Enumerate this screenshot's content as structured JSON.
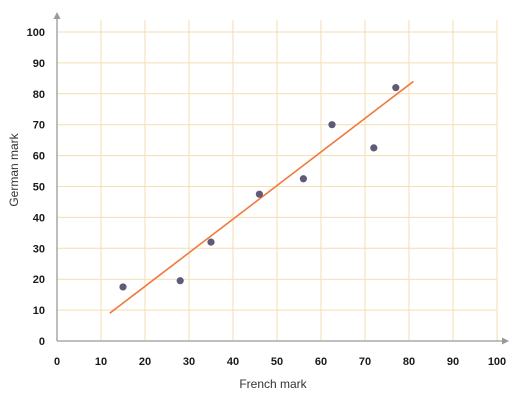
{
  "chart_data": {
    "type": "scatter",
    "title": "",
    "xlabel": "French mark",
    "ylabel": "German mark",
    "xlim": [
      0,
      100
    ],
    "ylim": [
      0,
      100
    ],
    "x_ticks": [
      "0",
      "10",
      "20",
      "30",
      "40",
      "50",
      "60",
      "70",
      "80",
      "90",
      "100"
    ],
    "y_ticks": [
      "0",
      "10",
      "20",
      "30",
      "40",
      "50",
      "60",
      "70",
      "80",
      "90",
      "100"
    ],
    "grid": true,
    "series": [
      {
        "points": [
          {
            "x": 15,
            "y": 17.5
          },
          {
            "x": 28,
            "y": 19.5
          },
          {
            "x": 35,
            "y": 32
          },
          {
            "x": 46,
            "y": 47.5
          },
          {
            "x": 56,
            "y": 52.5
          },
          {
            "x": 62.5,
            "y": 70
          },
          {
            "x": 72,
            "y": 62.5
          },
          {
            "x": 77,
            "y": 82
          }
        ]
      }
    ],
    "trendline": {
      "x1": 12,
      "y1": 9,
      "x2": 81,
      "y2": 84
    },
    "colors": {
      "grid": "#f3dfb0",
      "axis": "#9a9a9a",
      "point": "#5e5a78",
      "trendline": "#f07a3c"
    }
  }
}
